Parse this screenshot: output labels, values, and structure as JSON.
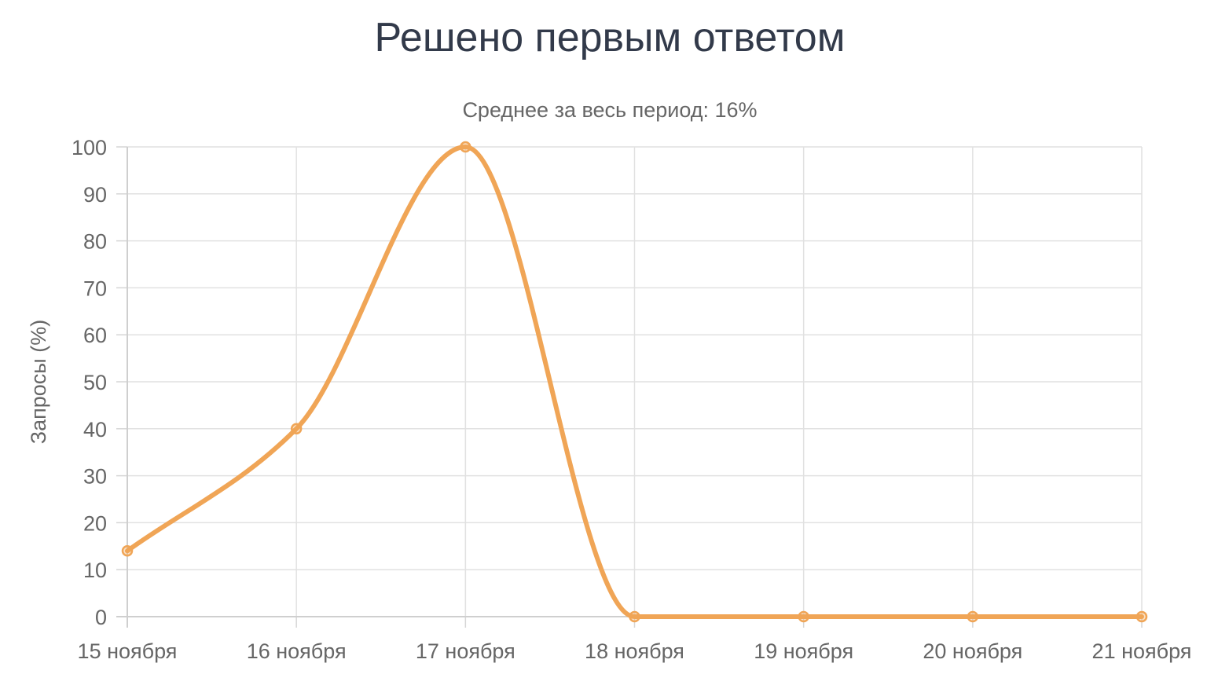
{
  "chart_data": {
    "type": "line",
    "title": "Решено первым ответом",
    "subtitle": "Среднее за весь период: 16%",
    "ylabel": "Запросы (%)",
    "xlabel": "",
    "categories": [
      "15 ноября",
      "16 ноября",
      "17 ноября",
      "18 ноября",
      "19 ноября",
      "20 ноября",
      "21 ноября"
    ],
    "series": [
      {
        "values": [
          14,
          40,
          100,
          0,
          0,
          0,
          0
        ],
        "color": "#f0a556"
      }
    ],
    "ylim": [
      0,
      100
    ],
    "yticks": [
      "0",
      "10",
      "20",
      "30",
      "40",
      "50",
      "60",
      "70",
      "80",
      "90",
      "100"
    ],
    "grid": true,
    "smooth": true,
    "legend": "none"
  }
}
